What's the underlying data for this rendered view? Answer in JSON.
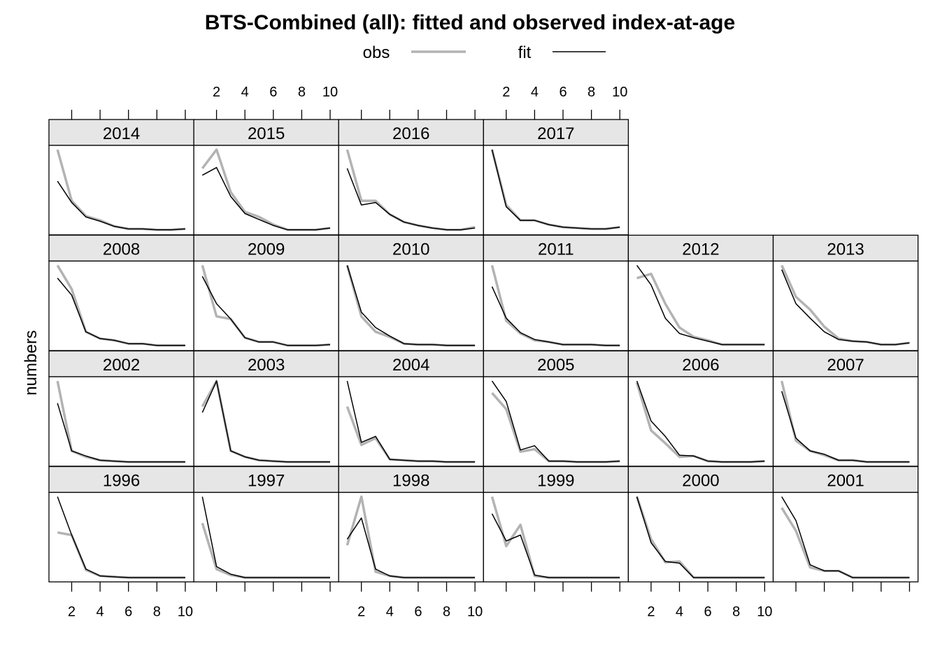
{
  "chart_data": {
    "type": "line",
    "title": "BTS-Combined (all): fitted and observed index-at-age",
    "ylabel": "numbers",
    "xlabel": "",
    "x": [
      1,
      2,
      3,
      4,
      5,
      6,
      7,
      8,
      9,
      10
    ],
    "xlim": [
      0.4,
      10.6
    ],
    "x_ticks": [
      2,
      4,
      6,
      8,
      10
    ],
    "ylim": [
      0,
      1.05
    ],
    "y_scale_note": "relative, no y tick labels",
    "legend": {
      "position": "top",
      "items": [
        {
          "label": "obs",
          "color": "#b3b3b3"
        },
        {
          "label": "fit",
          "color": "#000000"
        }
      ]
    },
    "colors": {
      "obs": "#b3b3b3",
      "fit": "#000000",
      "strip": "#e6e6e6"
    },
    "rows": [
      [
        "2014",
        "2015",
        "2016",
        "2017"
      ],
      [
        "2008",
        "2009",
        "2010",
        "2011",
        "2012",
        "2013"
      ],
      [
        "2002",
        "2003",
        "2004",
        "2005",
        "2006",
        "2007"
      ],
      [
        "1996",
        "1997",
        "1998",
        "1999",
        "2000",
        "2001"
      ]
    ],
    "panels": {
      "2014": {
        "obs": [
          1.0,
          0.4,
          0.22,
          0.17,
          0.1,
          0.07,
          0.07,
          0.06,
          0.06,
          0.07
        ],
        "fit": [
          0.63,
          0.38,
          0.21,
          0.16,
          0.1,
          0.07,
          0.07,
          0.06,
          0.06,
          0.07
        ]
      },
      "2015": {
        "obs": [
          0.78,
          1.0,
          0.5,
          0.27,
          0.21,
          0.12,
          0.06,
          0.06,
          0.06,
          0.08
        ],
        "fit": [
          0.7,
          0.79,
          0.45,
          0.25,
          0.18,
          0.11,
          0.06,
          0.06,
          0.06,
          0.08
        ]
      },
      "2016": {
        "obs": [
          1.0,
          0.4,
          0.4,
          0.24,
          0.15,
          0.11,
          0.08,
          0.06,
          0.06,
          0.09
        ],
        "fit": [
          0.78,
          0.35,
          0.38,
          0.24,
          0.15,
          0.11,
          0.08,
          0.06,
          0.06,
          0.08
        ]
      },
      "2017": {
        "obs": [
          1.0,
          0.35,
          0.17,
          0.17,
          0.12,
          0.09,
          0.08,
          0.07,
          0.07,
          0.09
        ],
        "fit": [
          1.0,
          0.33,
          0.17,
          0.17,
          0.12,
          0.09,
          0.08,
          0.07,
          0.07,
          0.09
        ]
      },
      "2008": {
        "obs": [
          1.0,
          0.72,
          0.22,
          0.14,
          0.12,
          0.08,
          0.08,
          0.06,
          0.06,
          0.06
        ],
        "fit": [
          0.85,
          0.65,
          0.22,
          0.14,
          0.12,
          0.08,
          0.08,
          0.06,
          0.06,
          0.06
        ]
      },
      "2009": {
        "obs": [
          1.0,
          0.4,
          0.37,
          0.15,
          0.1,
          0.1,
          0.06,
          0.06,
          0.06,
          0.07
        ],
        "fit": [
          0.87,
          0.55,
          0.37,
          0.15,
          0.1,
          0.1,
          0.06,
          0.06,
          0.06,
          0.07
        ]
      },
      "2010": {
        "obs": [
          1.0,
          0.4,
          0.22,
          0.16,
          0.08,
          0.07,
          0.07,
          0.06,
          0.06,
          0.06
        ],
        "fit": [
          1.0,
          0.45,
          0.27,
          0.17,
          0.08,
          0.07,
          0.07,
          0.06,
          0.06,
          0.06
        ]
      },
      "2011": {
        "obs": [
          1.0,
          0.35,
          0.2,
          0.12,
          0.1,
          0.07,
          0.07,
          0.07,
          0.06,
          0.06
        ],
        "fit": [
          0.75,
          0.38,
          0.21,
          0.13,
          0.1,
          0.07,
          0.07,
          0.07,
          0.06,
          0.06
        ]
      },
      "2012": {
        "obs": [
          0.85,
          0.9,
          0.55,
          0.27,
          0.16,
          0.12,
          0.07,
          0.07,
          0.07,
          0.07
        ],
        "fit": [
          1.0,
          0.77,
          0.38,
          0.2,
          0.15,
          0.11,
          0.07,
          0.07,
          0.07,
          0.07
        ]
      },
      "2013": {
        "obs": [
          1.0,
          0.63,
          0.48,
          0.28,
          0.14,
          0.11,
          0.1,
          0.07,
          0.07,
          0.09
        ],
        "fit": [
          0.95,
          0.55,
          0.38,
          0.22,
          0.13,
          0.11,
          0.1,
          0.07,
          0.07,
          0.09
        ]
      },
      "2002": {
        "obs": [
          1.0,
          0.18,
          0.11,
          0.07,
          0.06,
          0.05,
          0.05,
          0.05,
          0.05,
          0.05
        ],
        "fit": [
          0.74,
          0.18,
          0.12,
          0.07,
          0.06,
          0.05,
          0.05,
          0.05,
          0.05,
          0.05
        ]
      },
      "2003": {
        "obs": [
          0.7,
          1.0,
          0.18,
          0.11,
          0.07,
          0.06,
          0.05,
          0.05,
          0.05,
          0.05
        ],
        "fit": [
          0.63,
          1.0,
          0.18,
          0.11,
          0.07,
          0.06,
          0.05,
          0.05,
          0.05,
          0.05
        ]
      },
      "2004": {
        "obs": [
          0.7,
          0.25,
          0.33,
          0.08,
          0.07,
          0.06,
          0.06,
          0.05,
          0.05,
          0.05
        ],
        "fit": [
          1.0,
          0.28,
          0.35,
          0.08,
          0.07,
          0.06,
          0.06,
          0.05,
          0.05,
          0.05
        ]
      },
      "2005": {
        "obs": [
          0.86,
          0.67,
          0.17,
          0.2,
          0.06,
          0.06,
          0.05,
          0.05,
          0.05,
          0.06
        ],
        "fit": [
          1.0,
          0.76,
          0.19,
          0.24,
          0.06,
          0.06,
          0.05,
          0.05,
          0.05,
          0.06
        ]
      },
      "2006": {
        "obs": [
          0.98,
          0.42,
          0.27,
          0.11,
          0.12,
          0.06,
          0.05,
          0.05,
          0.05,
          0.06
        ],
        "fit": [
          1.0,
          0.53,
          0.35,
          0.13,
          0.12,
          0.06,
          0.05,
          0.05,
          0.05,
          0.06
        ]
      },
      "2007": {
        "obs": [
          1.0,
          0.3,
          0.18,
          0.13,
          0.07,
          0.07,
          0.05,
          0.05,
          0.05,
          0.05
        ],
        "fit": [
          0.88,
          0.33,
          0.18,
          0.14,
          0.07,
          0.07,
          0.05,
          0.05,
          0.05,
          0.05
        ]
      },
      "1996": {
        "obs": [
          0.58,
          0.55,
          0.14,
          0.07,
          0.06,
          0.05,
          0.05,
          0.05,
          0.05,
          0.05
        ],
        "fit": [
          1.0,
          0.55,
          0.15,
          0.07,
          0.06,
          0.05,
          0.05,
          0.05,
          0.05,
          0.05
        ]
      },
      "1997": {
        "obs": [
          0.69,
          0.15,
          0.08,
          0.05,
          0.05,
          0.05,
          0.05,
          0.05,
          0.05,
          0.05
        ],
        "fit": [
          1.0,
          0.18,
          0.09,
          0.05,
          0.05,
          0.05,
          0.05,
          0.05,
          0.05,
          0.05
        ]
      },
      "1998": {
        "obs": [
          0.43,
          1.0,
          0.12,
          0.07,
          0.05,
          0.05,
          0.05,
          0.05,
          0.05,
          0.05
        ],
        "fit": [
          0.5,
          0.75,
          0.15,
          0.07,
          0.05,
          0.05,
          0.05,
          0.05,
          0.05,
          0.05
        ]
      },
      "1999": {
        "obs": [
          1.0,
          0.42,
          0.67,
          0.07,
          0.05,
          0.05,
          0.05,
          0.05,
          0.05,
          0.05
        ],
        "fit": [
          0.8,
          0.48,
          0.55,
          0.08,
          0.05,
          0.05,
          0.05,
          0.05,
          0.05,
          0.05
        ]
      },
      "2000": {
        "obs": [
          1.0,
          0.5,
          0.23,
          0.24,
          0.05,
          0.05,
          0.05,
          0.05,
          0.05,
          0.05
        ],
        "fit": [
          1.0,
          0.46,
          0.24,
          0.22,
          0.05,
          0.05,
          0.05,
          0.05,
          0.05,
          0.05
        ]
      },
      "2001": {
        "obs": [
          0.87,
          0.6,
          0.17,
          0.13,
          0.13,
          0.05,
          0.05,
          0.05,
          0.05,
          0.05
        ],
        "fit": [
          1.0,
          0.72,
          0.2,
          0.13,
          0.13,
          0.05,
          0.05,
          0.05,
          0.05,
          0.05
        ]
      }
    }
  }
}
